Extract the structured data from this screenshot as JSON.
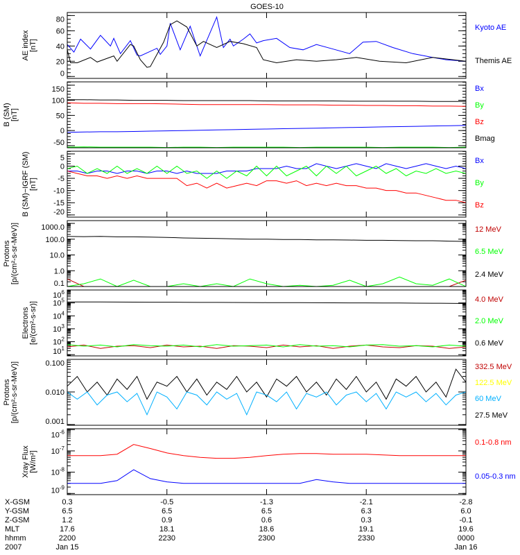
{
  "title": "GOES-10",
  "x_axis": {
    "unit": "minutes since 2200 UT",
    "range": [
      0,
      120
    ],
    "major_ticks": [
      0,
      30,
      60,
      90,
      120
    ],
    "minor_step": 5,
    "rows": [
      {
        "label": "X-GSM",
        "values": [
          "0.3",
          "-0.5",
          "-1.3",
          "-2.1",
          "-2.8"
        ]
      },
      {
        "label": "Y-GSM",
        "values": [
          "6.5",
          "6.5",
          "6.5",
          "6.3",
          "6.0"
        ]
      },
      {
        "label": "Z-GSM",
        "values": [
          "1.2",
          "0.9",
          "0.6",
          "0.3",
          "-0.1"
        ]
      },
      {
        "label": "MLT",
        "values": [
          "17.6",
          "18.1",
          "18.6",
          "19.1",
          "19.6"
        ]
      },
      {
        "label": "hhmm",
        "values": [
          "2200",
          "2230",
          "2300",
          "2330",
          "0000"
        ]
      },
      {
        "label": "2007",
        "values": [
          "Jan 15",
          "",
          "",
          "",
          "Jan 16"
        ]
      }
    ]
  },
  "chart_data": [
    {
      "type": "line",
      "ylabel": [
        "AE index",
        "[nT]"
      ],
      "scale": "linear",
      "ylim": [
        -2.5,
        84
      ],
      "ticks": [
        {
          "v": 0,
          "l": "0"
        },
        {
          "v": 20,
          "l": "20"
        },
        {
          "v": 40,
          "l": "40"
        },
        {
          "v": 60,
          "l": "60"
        },
        {
          "v": 80,
          "l": "80"
        }
      ],
      "minor_step": 5,
      "series": [
        {
          "name": "Kyoto AE",
          "color": "#0000ff",
          "t": [
            0,
            2,
            4,
            7,
            10,
            13,
            14,
            16,
            19,
            21,
            22,
            27,
            28,
            30,
            31,
            34,
            37,
            40,
            45,
            47,
            49,
            50,
            53,
            55,
            57,
            59,
            63,
            67,
            71,
            75,
            80,
            85,
            89,
            93,
            98,
            104,
            110,
            114,
            120
          ],
          "values": [
            42,
            32,
            49,
            36,
            54,
            40,
            50,
            30,
            47,
            28,
            27,
            37,
            29,
            40,
            70,
            35,
            66,
            27,
            78,
            38,
            49,
            40,
            49,
            56,
            44,
            47,
            50,
            38,
            35,
            42,
            36,
            30,
            45,
            46,
            38,
            30,
            25,
            22,
            20
          ]
        },
        {
          "name": "Themis AE",
          "color": "#000000",
          "t": [
            0,
            1,
            3,
            7,
            9,
            14,
            15,
            19,
            20,
            22,
            24,
            25,
            29,
            31,
            33,
            36,
            39,
            41,
            42,
            45,
            49,
            53,
            57,
            59,
            63,
            69,
            75,
            81,
            87,
            94,
            102,
            110,
            120
          ],
          "values": [
            35,
            18,
            18,
            25,
            19,
            27,
            20,
            42,
            40,
            22,
            12,
            13,
            45,
            68,
            73,
            65,
            40,
            46,
            44,
            38,
            46,
            43,
            38,
            22,
            18,
            22,
            20,
            22,
            25,
            20,
            18,
            25,
            20
          ]
        }
      ],
      "legend": [
        "Kyoto AE",
        "Themis AE"
      ]
    },
    {
      "type": "line",
      "ylabel": [
        "B (SM)",
        "[nT]"
      ],
      "scale": "linear",
      "ylim": [
        -57,
        161
      ],
      "ticks": [
        {
          "v": -50,
          "l": "-50"
        },
        {
          "v": 0,
          "l": "0"
        },
        {
          "v": 50,
          "l": "50"
        },
        {
          "v": 100,
          "l": "100"
        },
        {
          "v": 150,
          "l": "150"
        }
      ],
      "minor_step": 10,
      "series": [
        {
          "name": "Bx",
          "color": "#0000ff",
          "dt": 5,
          "values": [
            -6,
            -5,
            -4,
            -4,
            -3,
            -2,
            -1,
            0,
            1,
            2,
            3,
            4,
            5,
            6,
            7,
            8,
            9,
            10,
            11,
            12,
            13,
            14,
            15,
            16,
            17
          ]
        },
        {
          "name": "By",
          "color": "#00ff00",
          "dt": 5,
          "values": [
            -55,
            -54,
            -55,
            -55,
            -55,
            -55,
            -56,
            -55,
            -55,
            -56,
            -55,
            -55,
            -55,
            -55,
            -56,
            -55,
            -55,
            -55,
            -55,
            -56,
            -55,
            -55,
            -55,
            -56,
            -55
          ]
        },
        {
          "name": "Bz",
          "color": "#ff0000",
          "dt": 5,
          "values": [
            92,
            90,
            90,
            89,
            89,
            89,
            88,
            87,
            86,
            86,
            86,
            86,
            86,
            85,
            85,
            85,
            84,
            84,
            83,
            83,
            82,
            82,
            81,
            81,
            80
          ]
        },
        {
          "name": "Bmag",
          "color": "#000000",
          "dt": 5,
          "values": [
            102,
            102,
            101,
            101,
            100,
            100,
            100,
            99,
            99,
            99,
            99,
            99,
            98,
            98,
            98,
            98,
            98,
            97,
            97,
            97,
            97,
            97,
            96,
            96,
            96
          ]
        }
      ],
      "legend": [
        "Bx",
        "By",
        "Bz",
        "Bmag"
      ]
    },
    {
      "type": "line",
      "ylabel": [
        "B (SM)−IGRF (SM)",
        "[nT]"
      ],
      "scale": "linear",
      "ylim": [
        -20.9,
        6.1
      ],
      "ticks": [
        {
          "v": -20,
          "l": "-20"
        },
        {
          "v": -15,
          "l": "-15"
        },
        {
          "v": -10,
          "l": "-10"
        },
        {
          "v": -5,
          "l": "-5"
        },
        {
          "v": 0,
          "l": "0"
        },
        {
          "v": 5,
          "l": "5"
        }
      ],
      "minor_step": 1,
      "series": [
        {
          "name": "Bx",
          "color": "#0000ff",
          "dt": 3,
          "values": [
            -2,
            -2,
            -3,
            -2,
            -2,
            -3,
            -2,
            -2,
            -3,
            -2,
            -2,
            -3,
            -2,
            -3,
            -3,
            -3,
            -2,
            -2,
            -2,
            -1,
            -1,
            -1,
            0,
            -1,
            -1,
            1,
            0,
            -1,
            0,
            1,
            0,
            -1,
            1,
            0,
            -1,
            0,
            1,
            0,
            -1,
            0,
            -1
          ]
        },
        {
          "name": "By",
          "color": "#00ff00",
          "dt": 3,
          "values": [
            -1,
            0,
            -3,
            -1,
            -3,
            0,
            -3,
            -1,
            -3,
            0,
            -3,
            0,
            -3,
            -2,
            -5,
            -2,
            -5,
            -2,
            -4,
            0,
            -4,
            0,
            -4,
            -2,
            0,
            -4,
            0,
            -3,
            0,
            -4,
            -2,
            0,
            -3,
            -1,
            -4,
            -2,
            -3,
            -1,
            -3,
            -2,
            -3
          ]
        },
        {
          "name": "Bz",
          "color": "#ff0000",
          "dt": 3,
          "values": [
            -2,
            -3,
            -4,
            -4,
            -5,
            -4,
            -5,
            -4,
            -5,
            -5,
            -5,
            -5,
            -8,
            -7,
            -9,
            -7,
            -9,
            -8,
            -7,
            -8,
            -6,
            -6,
            -7,
            -6,
            -8,
            -7,
            -8,
            -7,
            -8,
            -8,
            -9,
            -9,
            -10,
            -10,
            -11,
            -11,
            -12,
            -13,
            -14,
            -14,
            -15
          ]
        }
      ],
      "legend": [
        "Bx",
        "By",
        "Bz"
      ]
    },
    {
      "type": "line",
      "ylabel": [
        "Protons",
        "[p/(cm²-s-sr-MeV)]"
      ],
      "scale": "log",
      "ylim": [
        0.1,
        1500
      ],
      "ticks": [
        {
          "v": 0.1,
          "l": "0.1"
        },
        {
          "v": 1,
          "l": "1.0"
        },
        {
          "v": 10,
          "l": "10.0"
        },
        {
          "v": 100,
          "l": "100.0"
        },
        {
          "v": 1000,
          "l": "1000.0"
        }
      ],
      "series": [
        {
          "name": "12 MeV",
          "color": "#c00000",
          "dt": 5,
          "values": [
            0.3,
            0.1,
            0.1,
            0.1,
            0.1,
            0.1,
            0.1,
            0.1,
            0.1,
            0.1,
            0.1,
            0.1,
            0.1,
            0.1,
            0.1,
            0.1,
            0.1,
            0.1,
            0.1,
            0.1,
            0.1,
            0.1,
            0.1,
            0.1,
            0.25
          ]
        },
        {
          "name": "6.5 MeV",
          "color": "#00ff00",
          "dt": 5,
          "values": [
            0.1,
            0.15,
            0.3,
            0.1,
            0.25,
            0.1,
            0.1,
            0.15,
            0.1,
            0.15,
            0.1,
            0.3,
            0.15,
            0.1,
            0.12,
            0.1,
            0.12,
            0.25,
            0.1,
            0.15,
            0.4,
            0.15,
            0.12,
            0.3,
            0.1
          ]
        },
        {
          "name": "2.4 MeV",
          "color": "#000000",
          "dt": 5,
          "values": [
            150,
            145,
            150,
            140,
            140,
            135,
            130,
            120,
            115,
            110,
            105,
            100,
            100,
            95,
            95,
            90,
            90,
            88,
            85,
            85,
            82,
            80,
            80,
            75,
            72
          ]
        }
      ],
      "legend": [
        "12 MeV",
        "6.5 MeV",
        "2.4 MeV"
      ]
    },
    {
      "type": "line",
      "ylabel": [
        "Electrons",
        "[e/(cm²-s-sr)]"
      ],
      "scale": "log",
      "ylim": [
        8,
        1000000
      ],
      "ticks": [
        {
          "v": 10,
          "b": "10",
          "e": "1"
        },
        {
          "v": 100,
          "b": "10",
          "e": "2"
        },
        {
          "v": 1000,
          "b": "10",
          "e": "3"
        },
        {
          "v": 10000,
          "b": "10",
          "e": "4"
        },
        {
          "v": 100000,
          "b": "10",
          "e": "5"
        },
        {
          "v": 1000000,
          "b": "10",
          "e": "6"
        }
      ],
      "series": [
        {
          "name": "4.0 MeV",
          "color": "#c00000",
          "dt": 5,
          "values": [
            40,
            55,
            30,
            45,
            50,
            35,
            55,
            40,
            45,
            30,
            50,
            45,
            35,
            55,
            40,
            50,
            30,
            45,
            55,
            40,
            35,
            50,
            45,
            30,
            40
          ]
        },
        {
          "name": "2.0 MeV",
          "color": "#00ff00",
          "dt": 5,
          "values": [
            60,
            45,
            55,
            40,
            60,
            50,
            45,
            55,
            40,
            60,
            45,
            50,
            55,
            40,
            60,
            45,
            50,
            40,
            55,
            60,
            45,
            50,
            40,
            55,
            45
          ]
        },
        {
          "name": "0.6 MeV",
          "color": "#000000",
          "dt": 5,
          "values": [
            120000,
            118000,
            119000,
            117000,
            115000,
            114000,
            113000,
            112000,
            110000,
            109000,
            108000,
            107000,
            106000,
            105000,
            104000,
            103000,
            102000,
            101000,
            100000,
            99000,
            98000,
            96000,
            95000,
            93000,
            90000
          ]
        }
      ],
      "legend": [
        "4.0 MeV",
        "2.0 MeV",
        "0.6 MeV"
      ]
    },
    {
      "type": "line",
      "ylabel": [
        "Protons",
        "[p/(cm²-s-sr-MeV)]"
      ],
      "scale": "log",
      "ylim": [
        0.00095,
        0.1
      ],
      "ticks": [
        {
          "v": 0.001,
          "l": "0.001"
        },
        {
          "v": 0.01,
          "l": "0.010"
        },
        {
          "v": 0.1,
          "l": "0.100"
        }
      ],
      "series": [
        {
          "name": "27.5 MeV",
          "color": "#000000",
          "dt": 3,
          "values": [
            0.015,
            0.03,
            0.01,
            0.02,
            0.008,
            0.025,
            0.012,
            0.03,
            0.006,
            0.02,
            0.015,
            0.03,
            0.01,
            0.025,
            0.008,
            0.02,
            0.012,
            0.03,
            0.01,
            0.02,
            0.007,
            0.025,
            0.015,
            0.03,
            0.01,
            0.02,
            0.008,
            0.025,
            0.012,
            0.03,
            0.01,
            0.02,
            0.006,
            0.025,
            0.015,
            0.03,
            0.01,
            0.02,
            0.007,
            0.05,
            0.02
          ]
        },
        {
          "name": "60 MeV",
          "color": "#00b0ff",
          "dt": 3,
          "values": [
            0.01,
            0.006,
            0.01,
            0.004,
            0.008,
            0.01,
            0.005,
            0.009,
            0.002,
            0.01,
            0.007,
            0.003,
            0.01,
            0.008,
            0.004,
            0.01,
            0.006,
            0.009,
            0.002,
            0.01,
            0.008,
            0.005,
            0.01,
            0.003,
            0.009,
            0.007,
            0.01,
            0.004,
            0.008,
            0.01,
            0.005,
            0.009,
            0.003,
            0.01,
            0.007,
            0.01,
            0.005,
            0.009,
            0.004,
            0.008,
            0.01
          ]
        }
      ],
      "legend": [
        "332.5 MeV",
        "122.5 MeV",
        "60 MeV",
        "27.5 MeV"
      ],
      "legend_colors": [
        "#c00000",
        "#ffff00",
        "#00b0ff",
        "#000000"
      ]
    },
    {
      "type": "line",
      "ylabel": [
        "Xray Flux",
        "[W/m²]"
      ],
      "scale": "log",
      "ylim": [
        8.8e-10,
        1.1e-06
      ],
      "ticks": [
        {
          "v": 1e-09,
          "b": "10",
          "e": "-9"
        },
        {
          "v": 1e-08,
          "b": "10",
          "e": "-8"
        },
        {
          "v": 1e-07,
          "b": "10",
          "e": "-7"
        },
        {
          "v": 1e-06,
          "b": "10",
          "e": "-6"
        }
      ],
      "series": [
        {
          "name": "0.1-0.8 nm",
          "color": "#ff0000",
          "dt": 5,
          "values": [
            6e-08,
            6e-08,
            6e-08,
            7e-08,
            2e-07,
            1.3e-07,
            8e-08,
            6e-08,
            5e-08,
            4.5e-08,
            4.5e-08,
            5e-08,
            6e-08,
            7e-08,
            7.5e-08,
            7.5e-08,
            7e-08,
            7e-08,
            7e-08,
            6.5e-08,
            6e-08,
            6e-08,
            6e-08,
            6e-08,
            6e-08
          ]
        },
        {
          "name": "0.05-0.3 nm",
          "color": "#0000ff",
          "dt": 5,
          "values": [
            3e-09,
            3e-09,
            3e-09,
            4e-09,
            1.3e-08,
            5e-09,
            3.5e-09,
            3e-09,
            3e-09,
            3e-09,
            3e-09,
            3e-09,
            3e-09,
            3e-09,
            3e-09,
            4.5e-09,
            3.5e-09,
            3e-09,
            3e-09,
            3e-09,
            3e-09,
            3e-09,
            3e-09,
            3e-09,
            3e-09
          ]
        }
      ],
      "legend": [
        "0.1-0.8 nm",
        "0.05-0.3 nm"
      ]
    }
  ]
}
